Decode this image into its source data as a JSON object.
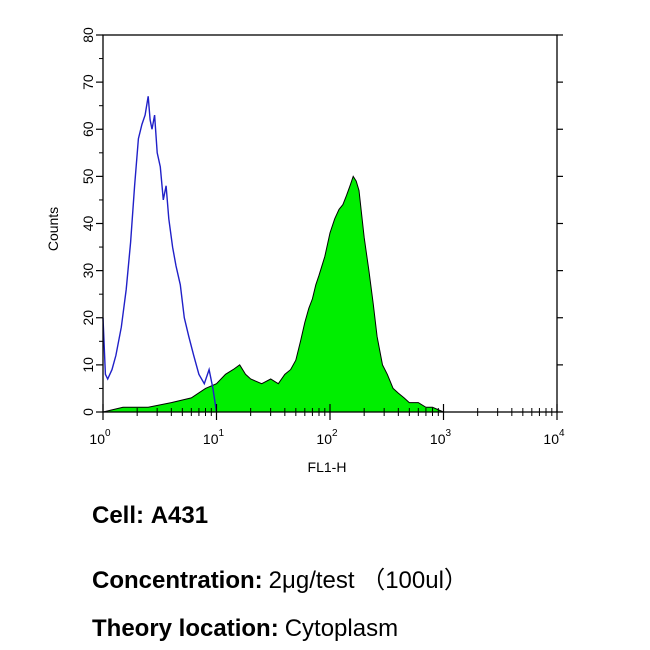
{
  "chart_data": {
    "type": "area",
    "title": "",
    "xlabel": "FL1-H",
    "ylabel": "Counts",
    "x_scale": "log",
    "xlim": [
      1,
      10000
    ],
    "ylim": [
      0,
      80
    ],
    "x_ticks": [
      {
        "value": 1,
        "base": "10",
        "exp": "0"
      },
      {
        "value": 10,
        "base": "10",
        "exp": "1"
      },
      {
        "value": 100,
        "base": "10",
        "exp": "2"
      },
      {
        "value": 1000,
        "base": "10",
        "exp": "3"
      },
      {
        "value": 10000,
        "base": "10",
        "exp": "4"
      }
    ],
    "y_ticks": [
      "0",
      "10",
      "20",
      "30",
      "40",
      "50",
      "60",
      "70",
      "80"
    ],
    "grid": false,
    "legend": "none",
    "series": [
      {
        "style": "outline",
        "color": "#2020c8",
        "x": [
          1.0,
          1.05,
          1.1,
          1.2,
          1.3,
          1.45,
          1.6,
          1.75,
          1.9,
          2.05,
          2.2,
          2.35,
          2.5,
          2.6,
          2.7,
          2.85,
          3.0,
          3.2,
          3.4,
          3.6,
          3.8,
          4.1,
          4.4,
          4.8,
          5.2,
          5.7,
          6.3,
          7.0,
          7.8,
          8.6,
          9.3,
          10.0
        ],
        "y": [
          20,
          8,
          7,
          9,
          12,
          18,
          26,
          36,
          48,
          58,
          61,
          63,
          67,
          62,
          60,
          63,
          55,
          52,
          45,
          48,
          41,
          35,
          31,
          27,
          20,
          16,
          12,
          8,
          6,
          9,
          5,
          0
        ]
      },
      {
        "style": "filled",
        "color": "#00ee00",
        "x": [
          1.0,
          1.5,
          2.5,
          4,
          6,
          8,
          10,
          12,
          14,
          16,
          18,
          20,
          25,
          30,
          35,
          40,
          45,
          50,
          55,
          60,
          65,
          70,
          75,
          80,
          90,
          100,
          110,
          120,
          130,
          140,
          150,
          160,
          170,
          180,
          190,
          200,
          220,
          240,
          260,
          290,
          320,
          360,
          400,
          450,
          500,
          600,
          700,
          800,
          1000,
          1100
        ],
        "y": [
          0,
          1,
          1,
          2,
          3,
          5,
          6,
          8,
          9,
          10,
          8,
          7,
          6,
          7,
          6,
          8,
          9,
          11,
          15,
          19,
          22,
          24,
          27,
          29,
          33,
          38,
          41,
          43,
          44,
          46,
          48,
          50,
          49,
          47,
          42,
          37,
          30,
          23,
          16,
          10,
          8,
          5,
          4,
          3,
          2,
          2,
          1,
          1,
          0,
          0
        ]
      }
    ],
    "annotations": []
  },
  "caption": {
    "cell_label": "Cell:",
    "cell_value": "A431",
    "concentration_label": "Concentration:",
    "concentration_value": "2μg/test （100ul）",
    "theory_label": "Theory location:",
    "theory_value": "Cytoplasm"
  }
}
